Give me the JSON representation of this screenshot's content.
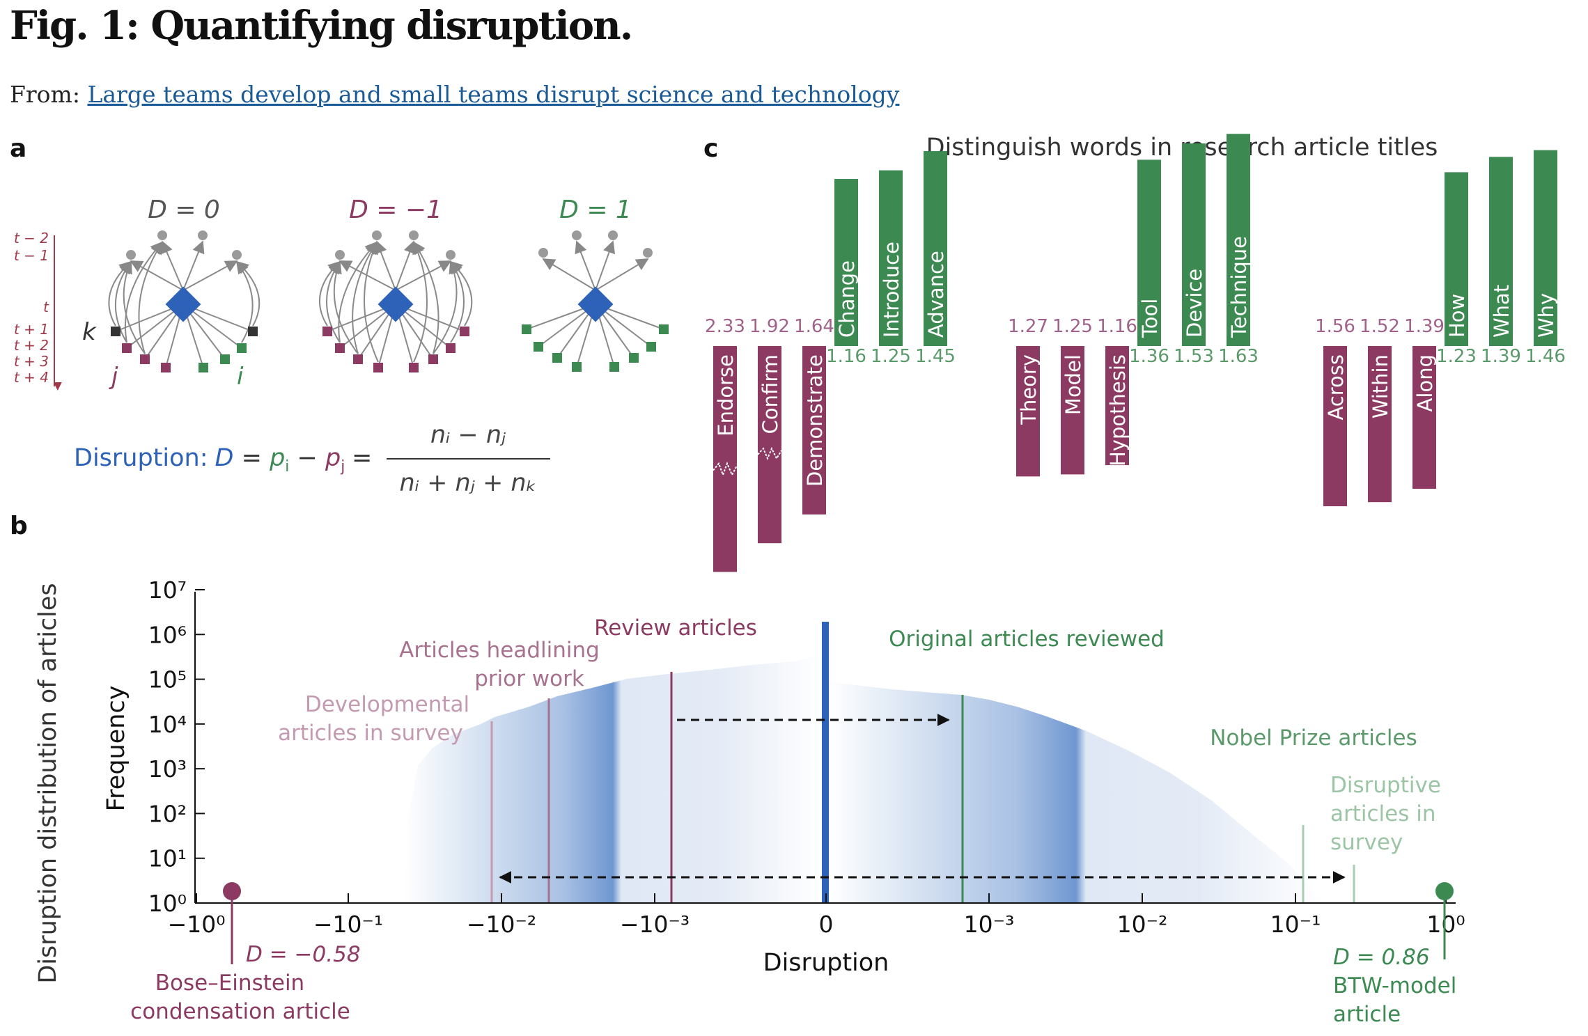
{
  "page": {
    "title": "Fig. 1: Quantifying disruption.",
    "from_label": "From:",
    "from_link": "Large teams develop and small teams disrupt science and technology"
  },
  "panel_a": {
    "label": "a",
    "diagrams": [
      {
        "label": "D = 0"
      },
      {
        "label": "D = −1"
      },
      {
        "label": "D = 1"
      }
    ],
    "time_labels": [
      "t − 2",
      "t − 1",
      "t",
      "t + 1",
      "t + 2",
      "t + 3",
      "t + 4"
    ],
    "k_label": "k",
    "j_label": "j",
    "i_label": "i",
    "formula_label": "Disruption:",
    "formula_lhs": "D = p",
    "formula_i": "i",
    "formula_minus": " − p",
    "formula_j": "j",
    "formula_eq": "=",
    "formula_num": "nᵢ − nⱼ",
    "formula_den": "nᵢ + nⱼ + nₖ"
  },
  "panel_b": {
    "label": "b",
    "outer_ylabel": "Disruption distribution of articles",
    "annotations": {
      "review": "Review articles",
      "headlining_1": "Articles headlining",
      "headlining_2": "prior work",
      "developmental_1": "Developmental",
      "developmental_2": "articles in survey",
      "original_reviewed": "Original articles reviewed",
      "nobel": "Nobel Prize articles",
      "disruptive_1": "Disruptive",
      "disruptive_2": "articles in",
      "disruptive_3": "survey",
      "bose_d": "D = −0.58",
      "bose_1": "Bose–Einstein",
      "bose_2": "condensation article",
      "btw_d": "D = 0.86",
      "btw_1": "BTW-model",
      "btw_2": "article"
    }
  },
  "panel_c": {
    "label": "c",
    "title": "Distinguish words in research article titles"
  },
  "colors": {
    "blue": "#2e62b8",
    "purple": "#8c3a62",
    "green": "#3c8a52",
    "light_purple": "#c39ab0",
    "mid_purple": "#a8728e",
    "light_green": "#a9cdb0",
    "gray": "#999999"
  },
  "chart_data": [
    {
      "type": "bar",
      "title": "Distinguish words in research article titles",
      "groups": [
        {
          "purple_words": [
            "Endorse",
            "Confirm",
            "Demonstrate"
          ],
          "purple_values": [
            2.33,
            1.92,
            1.64
          ],
          "green_words": [
            "Change",
            "Introduce",
            "Advance"
          ],
          "green_values": [
            1.16,
            1.25,
            1.45
          ]
        },
        {
          "purple_words": [
            "Theory",
            "Model",
            "Hypothesis"
          ],
          "purple_values": [
            1.27,
            1.25,
            1.16
          ],
          "green_words": [
            "Tool",
            "Device",
            "Technique"
          ],
          "green_values": [
            1.36,
            1.53,
            1.63
          ]
        },
        {
          "purple_words": [
            "Across",
            "Within",
            "Along"
          ],
          "purple_values": [
            1.56,
            1.52,
            1.39
          ],
          "green_words": [
            "How",
            "What",
            "Why"
          ],
          "green_values": [
            1.23,
            1.39,
            1.46
          ]
        }
      ],
      "purple_value_labels": [
        "2.33",
        "1.92",
        "1.64",
        "1.27",
        "1.25",
        "1.16",
        "1.56",
        "1.52",
        "1.39"
      ],
      "green_value_labels": [
        "1.16",
        "1.25",
        "1.45",
        "1.36",
        "1.53",
        "1.63",
        "1.23",
        "1.39",
        "1.46"
      ]
    },
    {
      "type": "area",
      "title": "Disruption distribution of articles",
      "xlabel": "Disruption",
      "ylabel": "Frequency",
      "x_scale": "symlog",
      "y_scale": "log",
      "x_ticks": [
        "−10⁰",
        "−10⁻¹",
        "−10⁻²",
        "−10⁻³",
        "0",
        "10⁻³",
        "10⁻²",
        "10⁻¹",
        "10⁰"
      ],
      "y_ticks": [
        "10⁰",
        "10¹",
        "10²",
        "10³",
        "10⁴",
        "10⁵",
        "10⁶",
        "10⁷"
      ],
      "ylim": [
        1,
        10000000
      ],
      "markers": [
        {
          "name": "Bose–Einstein condensation article",
          "x": -0.58
        },
        {
          "name": "BTW-model article",
          "x": 0.86
        }
      ]
    }
  ]
}
